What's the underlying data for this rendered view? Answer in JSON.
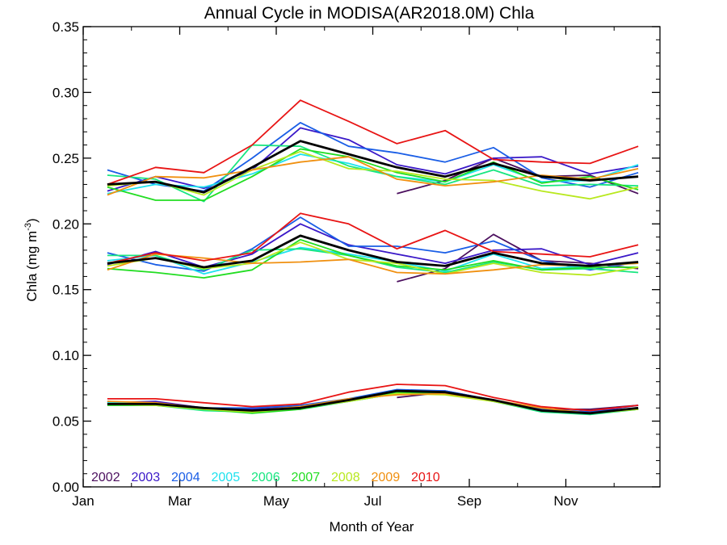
{
  "chart_data": {
    "type": "line",
    "title": "Annual Cycle in MODISA(AR2018.0M) Chla",
    "xlabel": "Month of Year",
    "ylabel": "Chla (mg m",
    "ylabel_sup": "-3",
    "ylabel_close": ")",
    "xlim": [
      1,
      12.95
    ],
    "ylim": [
      0,
      0.35
    ],
    "grid": false,
    "legend_position": "bottom-left",
    "x_ticks": [
      {
        "value": 1,
        "label": "Jan"
      },
      {
        "value": 3,
        "label": "Mar"
      },
      {
        "value": 5,
        "label": "May"
      },
      {
        "value": 7,
        "label": "Jul"
      },
      {
        "value": 9,
        "label": "Sep"
      },
      {
        "value": 11,
        "label": "Nov"
      }
    ],
    "y_ticks": [
      {
        "value": 0.0,
        "label": "0.00"
      },
      {
        "value": 0.05,
        "label": "0.05"
      },
      {
        "value": 0.1,
        "label": "0.10"
      },
      {
        "value": 0.15,
        "label": "0.15"
      },
      {
        "value": 0.2,
        "label": "0.20"
      },
      {
        "value": 0.25,
        "label": "0.25"
      },
      {
        "value": 0.3,
        "label": "0.30"
      },
      {
        "value": 0.35,
        "label": "0.35"
      }
    ],
    "x": [
      1.5,
      2.5,
      3.5,
      4.5,
      5.5,
      6.5,
      7.5,
      8.5,
      9.5,
      10.5,
      11.5,
      12.5
    ],
    "series": [
      {
        "name": "2002",
        "color": "#4b0f5e",
        "upper": [
          null,
          null,
          null,
          null,
          null,
          null,
          0.223,
          0.233,
          0.25,
          0.236,
          0.237,
          0.223
        ],
        "middle": [
          null,
          null,
          null,
          null,
          null,
          null,
          0.156,
          0.166,
          0.192,
          0.172,
          0.17,
          0.166
        ],
        "lower": [
          null,
          null,
          null,
          null,
          null,
          null,
          0.068,
          0.072,
          0.066,
          0.059,
          0.059,
          0.062
        ]
      },
      {
        "name": "2003",
        "color": "#3a18c8",
        "upper": [
          0.225,
          0.236,
          0.227,
          0.241,
          0.273,
          0.264,
          0.245,
          0.238,
          0.25,
          0.251,
          0.238,
          0.244
        ],
        "middle": [
          0.169,
          0.179,
          0.167,
          0.177,
          0.2,
          0.184,
          0.177,
          0.17,
          0.18,
          0.181,
          0.169,
          0.178
        ],
        "lower": [
          0.064,
          0.065,
          0.06,
          0.059,
          0.061,
          0.066,
          0.073,
          0.073,
          0.066,
          0.059,
          0.057,
          0.062
        ]
      },
      {
        "name": "2004",
        "color": "#1a5ee6",
        "upper": [
          0.241,
          0.23,
          0.225,
          0.25,
          0.277,
          0.259,
          0.254,
          0.247,
          0.258,
          0.235,
          0.228,
          0.239
        ],
        "middle": [
          0.178,
          0.169,
          0.164,
          0.181,
          0.205,
          0.183,
          0.183,
          0.178,
          0.187,
          0.172,
          0.165,
          0.171
        ],
        "lower": [
          0.065,
          0.063,
          0.06,
          0.06,
          0.062,
          0.067,
          0.074,
          0.073,
          0.066,
          0.059,
          0.057,
          0.06
        ]
      },
      {
        "name": "2005",
        "color": "#1ee2ee",
        "upper": [
          0.223,
          0.23,
          0.228,
          0.238,
          0.253,
          0.246,
          0.236,
          0.232,
          0.245,
          0.232,
          0.233,
          0.245
        ],
        "middle": [
          0.172,
          0.176,
          0.162,
          0.171,
          0.182,
          0.177,
          0.171,
          0.164,
          0.177,
          0.166,
          0.168,
          0.17
        ],
        "lower": [
          0.064,
          0.063,
          0.059,
          0.058,
          0.06,
          0.065,
          0.071,
          0.071,
          0.065,
          0.058,
          0.056,
          0.059
        ]
      },
      {
        "name": "2006",
        "color": "#18e680",
        "upper": [
          0.237,
          0.234,
          0.217,
          0.26,
          0.259,
          0.244,
          0.236,
          0.23,
          0.241,
          0.229,
          0.23,
          0.229
        ],
        "middle": [
          0.176,
          0.176,
          0.165,
          0.18,
          0.181,
          0.176,
          0.167,
          0.163,
          0.171,
          0.165,
          0.166,
          0.163
        ],
        "lower": [
          0.063,
          0.062,
          0.058,
          0.057,
          0.059,
          0.065,
          0.071,
          0.071,
          0.065,
          0.057,
          0.055,
          0.059
        ]
      },
      {
        "name": "2007",
        "color": "#22dd22",
        "upper": [
          0.228,
          0.218,
          0.218,
          0.236,
          0.257,
          0.251,
          0.239,
          0.232,
          0.247,
          0.231,
          0.236,
          0.226
        ],
        "middle": [
          0.166,
          0.163,
          0.159,
          0.165,
          0.188,
          0.176,
          0.168,
          0.165,
          0.172,
          0.165,
          0.167,
          0.167
        ],
        "lower": [
          0.062,
          0.062,
          0.059,
          0.056,
          0.059,
          0.066,
          0.072,
          0.071,
          0.066,
          0.058,
          0.056,
          0.059
        ]
      },
      {
        "name": "2008",
        "color": "#b8e81e",
        "upper": [
          0.229,
          0.232,
          0.222,
          0.241,
          0.255,
          0.242,
          0.24,
          0.234,
          0.233,
          0.225,
          0.219,
          0.228
        ],
        "middle": [
          0.168,
          0.174,
          0.166,
          0.17,
          0.186,
          0.173,
          0.17,
          0.162,
          0.17,
          0.163,
          0.161,
          0.167
        ],
        "lower": [
          0.063,
          0.062,
          0.059,
          0.057,
          0.06,
          0.065,
          0.071,
          0.07,
          0.065,
          0.058,
          0.056,
          0.059
        ]
      },
      {
        "name": "2009",
        "color": "#f09010",
        "upper": [
          0.222,
          0.236,
          0.235,
          0.241,
          0.247,
          0.251,
          0.234,
          0.229,
          0.232,
          0.237,
          0.234,
          0.242
        ],
        "middle": [
          0.165,
          0.177,
          0.174,
          0.17,
          0.171,
          0.173,
          0.163,
          0.162,
          0.165,
          0.169,
          0.168,
          0.17
        ],
        "lower": [
          0.065,
          0.064,
          0.06,
          0.058,
          0.061,
          0.067,
          0.07,
          0.071,
          0.066,
          0.06,
          0.056,
          0.06
        ]
      },
      {
        "name": "2010",
        "color": "#e81414",
        "upper": [
          0.23,
          0.243,
          0.239,
          0.26,
          0.294,
          0.278,
          0.261,
          0.271,
          0.249,
          0.247,
          0.246,
          0.259
        ],
        "middle": [
          0.17,
          0.178,
          0.172,
          0.178,
          0.208,
          0.2,
          0.181,
          0.195,
          0.179,
          0.177,
          0.175,
          0.184
        ],
        "lower": [
          0.067,
          0.067,
          0.064,
          0.061,
          0.063,
          0.072,
          0.078,
          0.077,
          0.068,
          0.061,
          0.058,
          0.062
        ]
      },
      {
        "name": "",
        "color": "#000000",
        "upper": [
          0.23,
          0.232,
          0.224,
          0.243,
          0.263,
          0.253,
          0.243,
          0.236,
          0.246,
          0.236,
          0.233,
          0.236
        ],
        "middle": [
          0.17,
          0.174,
          0.167,
          0.172,
          0.191,
          0.18,
          0.171,
          0.168,
          0.178,
          0.17,
          0.168,
          0.171
        ],
        "lower": [
          0.063,
          0.063,
          0.06,
          0.058,
          0.06,
          0.066,
          0.073,
          0.072,
          0.066,
          0.058,
          0.056,
          0.06
        ]
      }
    ]
  }
}
